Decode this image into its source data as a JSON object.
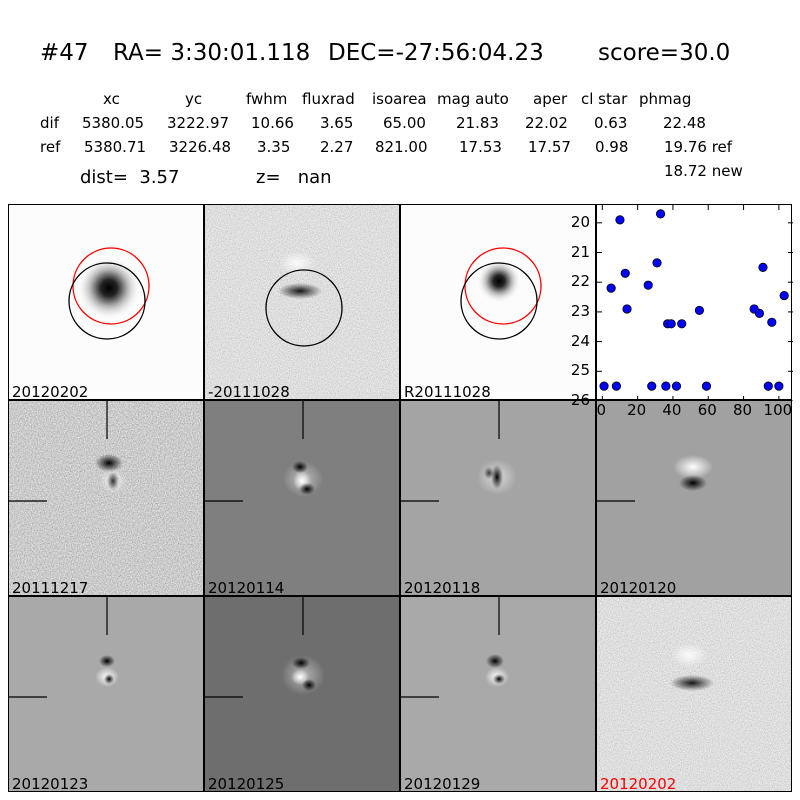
{
  "header": {
    "id": "#47",
    "ra": "RA= 3:30:01.118",
    "dec": "DEC=-27:56:04.23",
    "score": "score=30.0"
  },
  "table": {
    "columns": [
      "xc",
      "yc",
      "fwhm",
      "fluxrad",
      "isoarea",
      "mag auto",
      "aper",
      "cl star",
      "phmag"
    ],
    "rows": [
      {
        "label": "dif",
        "values": [
          "5380.05",
          "3222.97",
          "10.66",
          "3.65",
          "65.00",
          "21.83",
          "22.02",
          "0.63",
          "22.48"
        ]
      },
      {
        "label": "ref",
        "values": [
          "5380.71",
          "3226.48",
          "3.35",
          "2.27",
          "821.00",
          "17.53",
          "17.57",
          "0.98",
          "19.76 ref"
        ]
      }
    ],
    "extra_phmag": "18.72 new",
    "dist": "dist=  3.57",
    "z": "z=   nan"
  },
  "panels": [
    {
      "label": "20120202",
      "color": "#000000"
    },
    {
      "label": "-20111028",
      "color": "#000000"
    },
    {
      "label": "R20111028",
      "color": "#000000"
    },
    {
      "label": "20111217",
      "color": "#000000"
    },
    {
      "label": "20120114",
      "color": "#000000"
    },
    {
      "label": "20120118",
      "color": "#000000"
    },
    {
      "label": "20120120",
      "color": "#000000"
    },
    {
      "label": "20120123",
      "color": "#000000"
    },
    {
      "label": "20120125",
      "color": "#000000"
    },
    {
      "label": "20120129",
      "color": "#000000"
    },
    {
      "label": "20120202",
      "color": "#ff0000"
    }
  ],
  "chart_data": {
    "type": "scatter",
    "xlim": [
      -3,
      108
    ],
    "ylim": [
      26,
      19.4
    ],
    "x_ticks": [
      0,
      20,
      40,
      60,
      80,
      100
    ],
    "y_ticks": [
      20,
      21,
      22,
      23,
      24,
      25,
      26
    ],
    "y_inverted": true,
    "marker_color": "#0000ff",
    "x": [
      1,
      5,
      8,
      10,
      13,
      14,
      26,
      28,
      31,
      33,
      36,
      37,
      39,
      42,
      45,
      55,
      59,
      86,
      89,
      91,
      94,
      96,
      100,
      103
    ],
    "y": [
      25.5,
      22.2,
      25.5,
      19.9,
      21.7,
      22.9,
      22.1,
      25.5,
      21.35,
      19.7,
      25.5,
      23.4,
      23.4,
      25.5,
      23.4,
      22.95,
      25.5,
      22.9,
      23.05,
      21.5,
      25.5,
      23.35,
      25.5,
      22.45
    ]
  }
}
